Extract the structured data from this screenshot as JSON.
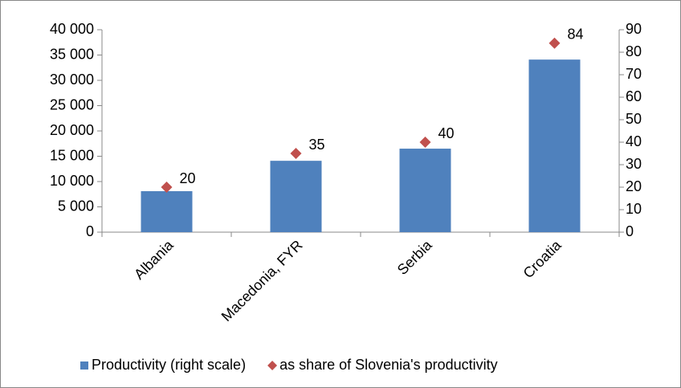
{
  "chart_data": {
    "type": "bar",
    "categories": [
      "Albania",
      "Macedonia, FYR",
      "Serbia",
      "Croatia"
    ],
    "series": [
      {
        "name": "Productivity (right scale)",
        "color": "#4f81bd",
        "type": "bar",
        "axis": "y",
        "values": [
          8100,
          14100,
          16500,
          34100
        ]
      },
      {
        "name": "as share of Slovenia's productivity",
        "color": "#c0504d",
        "type": "marker",
        "axis": "y2",
        "values": [
          20,
          35,
          40,
          84
        ]
      }
    ],
    "ylim": [
      0,
      40000
    ],
    "yticks": [
      0,
      {
        "value": 5000,
        "label": "5 000"
      },
      {
        "value": 10000,
        "label": "10 000"
      },
      {
        "value": 15000,
        "label": "15 000"
      },
      {
        "value": 20000,
        "label": "20 000"
      },
      {
        "value": 25000,
        "label": "25 000"
      },
      {
        "value": 30000,
        "label": "30 000"
      },
      {
        "value": 35000,
        "label": "35 000"
      },
      {
        "value": 40000,
        "label": "40 000"
      }
    ],
    "y2lim": [
      0,
      90
    ],
    "y2ticks": [
      0,
      10,
      20,
      30,
      40,
      50,
      60,
      70,
      80,
      90
    ],
    "grid": false,
    "legend": "bottom"
  }
}
